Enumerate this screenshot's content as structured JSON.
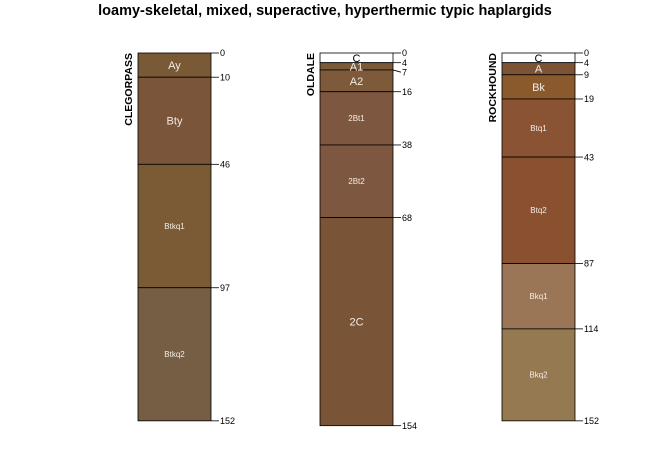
{
  "title": "loamy-skeletal, mixed, superactive, hyperthermic typic haplargids",
  "profiles": [
    {
      "name": "CLEGORPASS",
      "horizons": [
        {
          "name": "Ay",
          "top": 0,
          "bottom": 10,
          "color": "#7A5A36"
        },
        {
          "name": "Bty",
          "top": 10,
          "bottom": 46,
          "color": "#7A5539"
        },
        {
          "name": "Btkq1",
          "top": 46,
          "bottom": 97,
          "color": "#7A5B35"
        },
        {
          "name": "Btkq2",
          "top": 97,
          "bottom": 152,
          "color": "#765E44"
        }
      ]
    },
    {
      "name": "OLDALE",
      "horizons": [
        {
          "name": "C",
          "top": 0,
          "bottom": 4,
          "color": "#FFFFFF"
        },
        {
          "name": "A1",
          "top": 4,
          "bottom": 7,
          "color": "#7A5A39"
        },
        {
          "name": "A2",
          "top": 7,
          "bottom": 16,
          "color": "#7D5A3A"
        },
        {
          "name": "2Bt1",
          "top": 16,
          "bottom": 38,
          "color": "#7E5741"
        },
        {
          "name": "2Bt2",
          "top": 38,
          "bottom": 68,
          "color": "#7E5741"
        },
        {
          "name": "2C",
          "top": 68,
          "bottom": 154,
          "color": "#7A5437"
        }
      ]
    },
    {
      "name": "ROCKHOUND",
      "horizons": [
        {
          "name": "C",
          "top": 0,
          "bottom": 4,
          "color": "#FFFFFF"
        },
        {
          "name": "A",
          "top": 4,
          "bottom": 9,
          "color": "#7C5435"
        },
        {
          "name": "Bk",
          "top": 9,
          "bottom": 19,
          "color": "#8A5A2D"
        },
        {
          "name": "Btq1",
          "top": 19,
          "bottom": 43,
          "color": "#8A5333"
        },
        {
          "name": "Btq2",
          "top": 43,
          "bottom": 87,
          "color": "#8A5131"
        },
        {
          "name": "Bkq1",
          "top": 87,
          "bottom": 114,
          "color": "#9A7657"
        },
        {
          "name": "Bkq2",
          "top": 114,
          "bottom": 152,
          "color": "#957951"
        }
      ]
    }
  ]
}
